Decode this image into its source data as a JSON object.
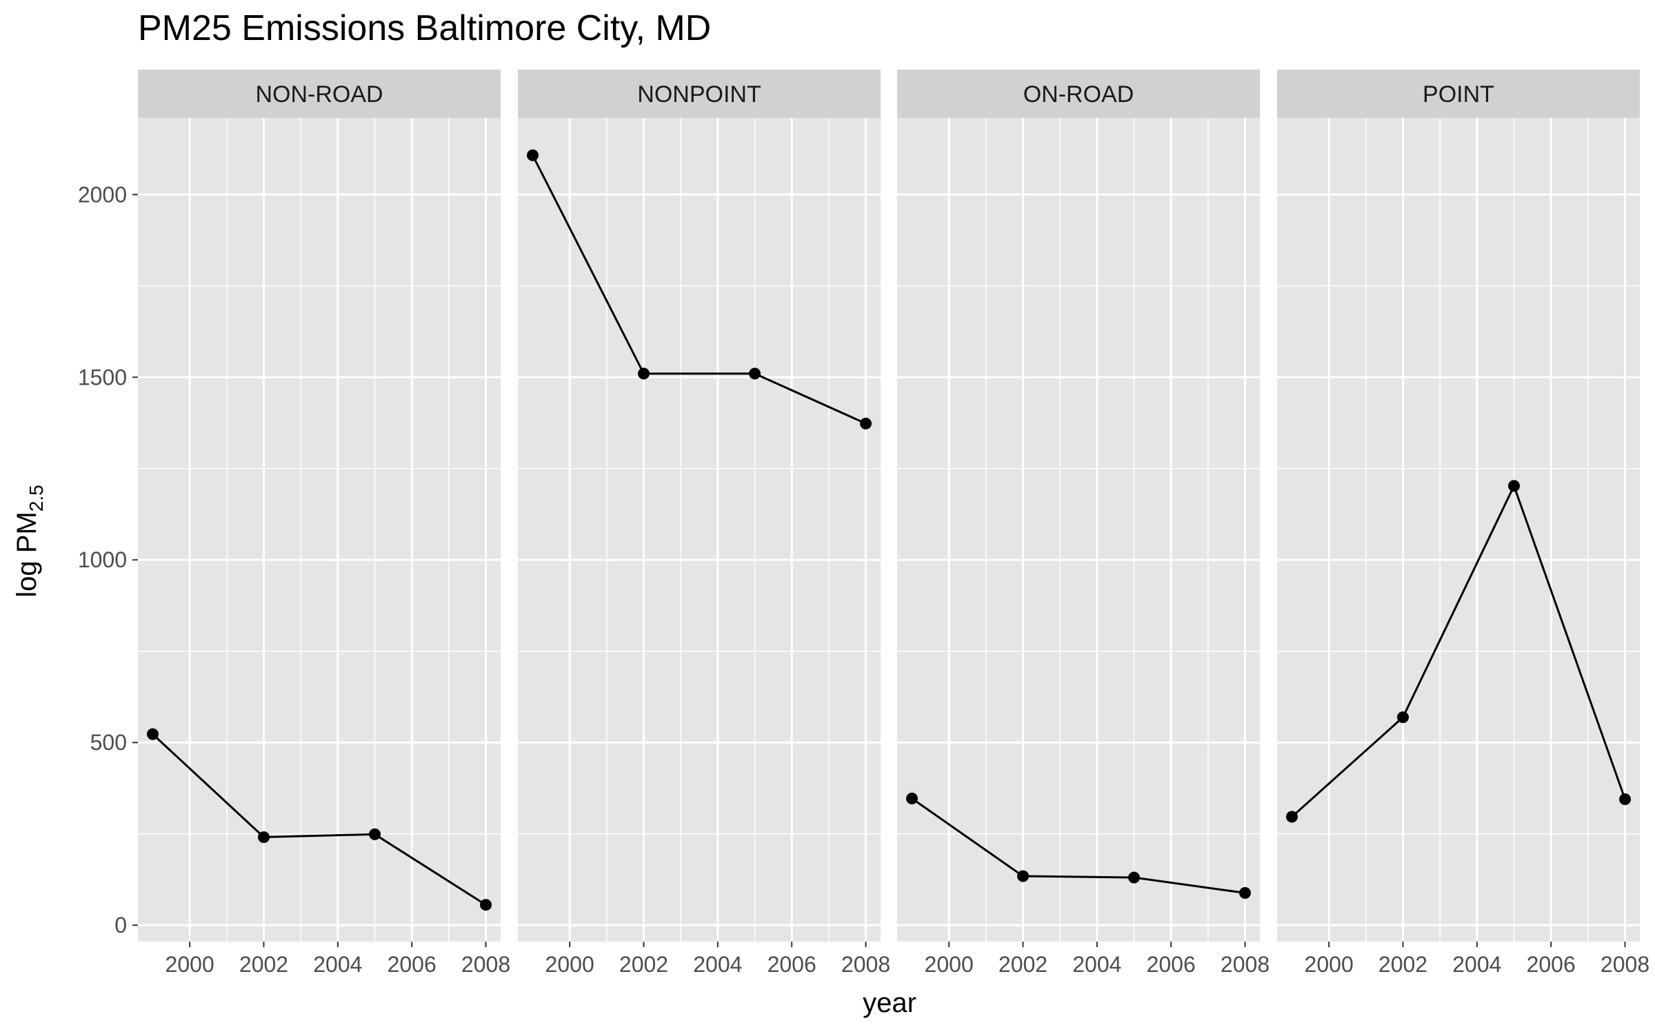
{
  "chart_data": {
    "type": "line",
    "title": "PM25 Emissions Baltimore City, MD",
    "xlabel": "year",
    "ylabel": {
      "main": "log PM",
      "subscript": "2.5"
    },
    "xlim": [
      1998.6,
      2008.4
    ],
    "ylim": [
      -45,
      2210
    ],
    "x_ticks": [
      2000,
      2002,
      2004,
      2006,
      2008
    ],
    "y_ticks": [
      0,
      500,
      1000,
      1500,
      2000
    ],
    "grid": true,
    "colors": {
      "panel_bg": "#e5e5e5",
      "strip_bg": "#d1d1d1",
      "grid_major": "#ffffff",
      "series": "#000000"
    },
    "x": [
      1999,
      2002,
      2005,
      2008
    ],
    "panels": [
      {
        "name": "NON-ROAD",
        "values": [
          522.9,
          241.0,
          248.9,
          55.8
        ]
      },
      {
        "name": "NONPOINT",
        "values": [
          2107.6,
          1510.0,
          1510.0,
          1373.2
        ]
      },
      {
        "name": "ON-ROAD",
        "values": [
          346.8,
          134.3,
          130.4,
          88.3
        ]
      },
      {
        "name": "POINT",
        "values": [
          296.8,
          569.3,
          1202.5,
          344.98
        ]
      }
    ]
  }
}
